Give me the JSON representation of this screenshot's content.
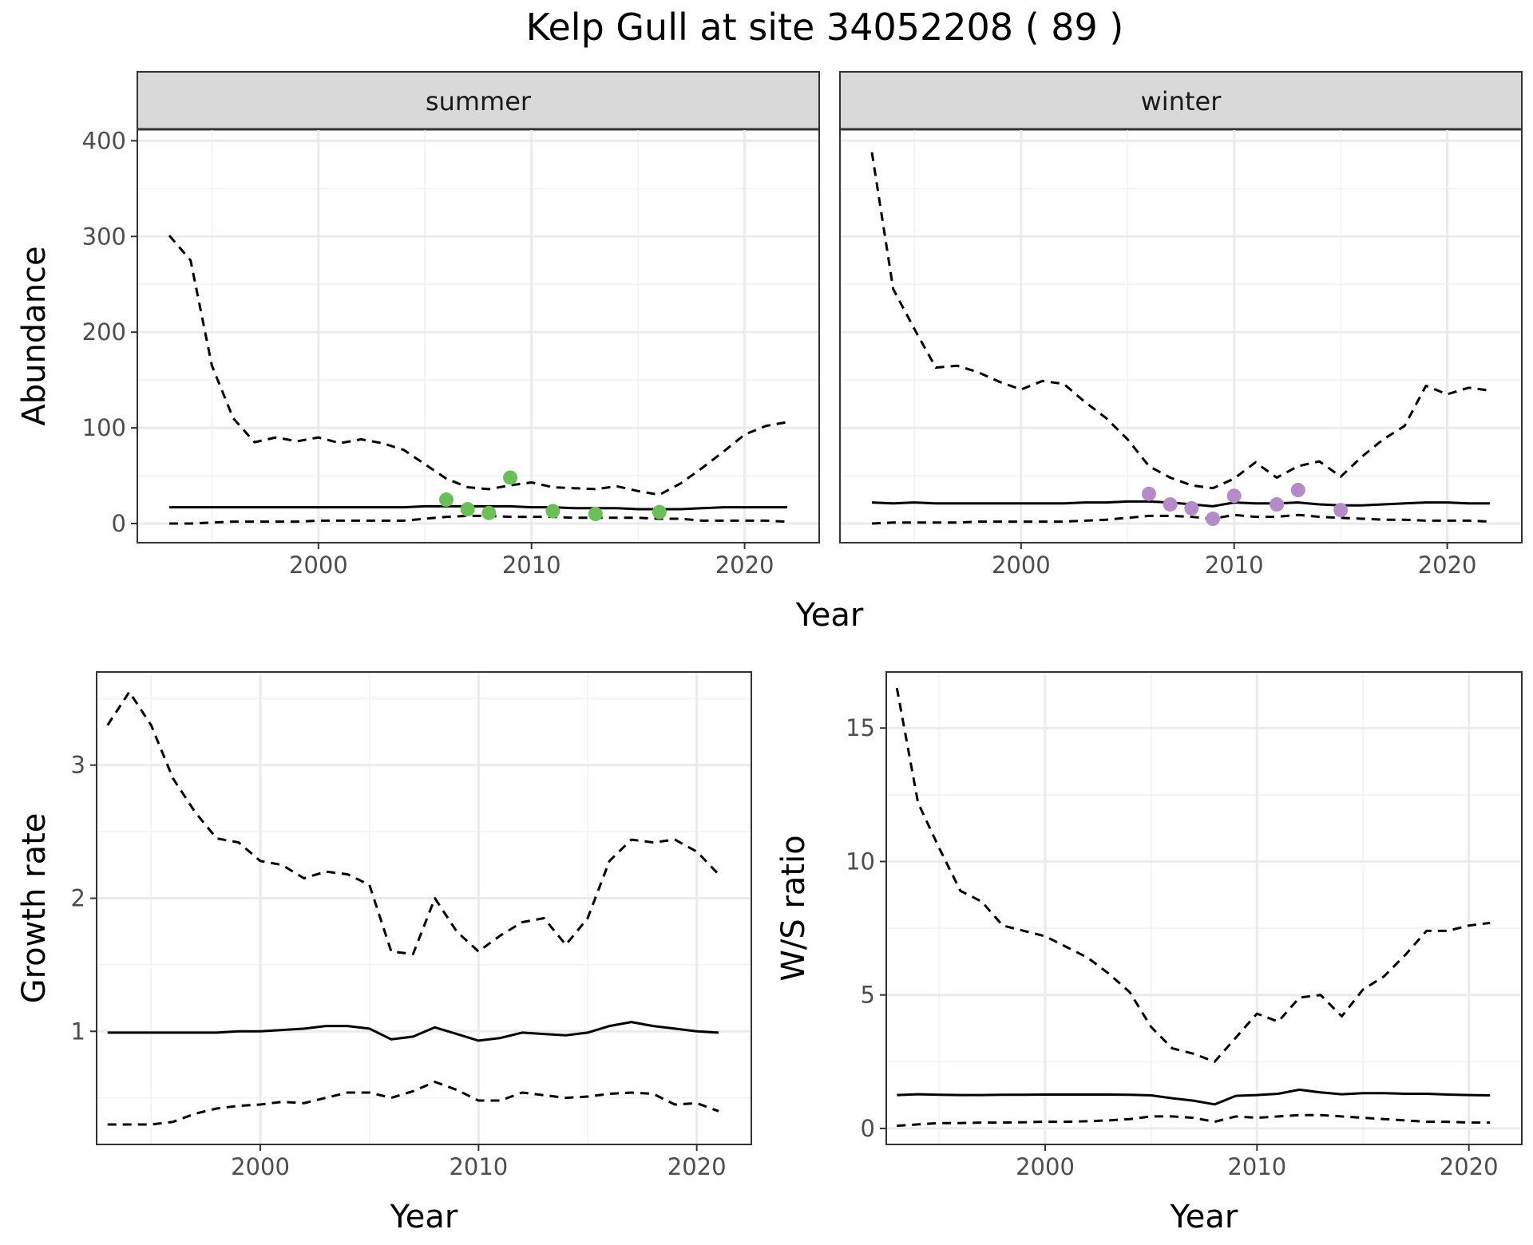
{
  "title": "Kelp Gull at site 34052208 ( 89 )",
  "colors": {
    "summer_points": "#6bbf59",
    "winter_points": "#b48bc8",
    "line": "#000000",
    "strip_bg": "#d9d9d9",
    "grid": "#ebebeb"
  },
  "chart_data": [
    {
      "id": "abundance",
      "type": "line",
      "xlabel": "Year",
      "ylabel": "Abundance",
      "xlim": [
        1991.5,
        2023.5
      ],
      "ylim": [
        -20,
        412
      ],
      "xticks": [
        2000,
        2010,
        2020
      ],
      "yticks": [
        0,
        100,
        200,
        300,
        400
      ],
      "facets": [
        {
          "label": "summer",
          "x": [
            1993,
            1994,
            1995,
            1996,
            1997,
            1998,
            1999,
            2000,
            2001,
            2002,
            2003,
            2004,
            2005,
            2006,
            2007,
            2008,
            2009,
            2010,
            2011,
            2012,
            2013,
            2014,
            2015,
            2016,
            2017,
            2018,
            2019,
            2020,
            2021,
            2022
          ],
          "median": [
            17,
            17,
            17,
            17,
            17,
            17,
            17,
            17,
            17,
            17,
            17,
            17,
            18,
            18,
            18,
            18,
            18,
            17,
            17,
            16,
            16,
            16,
            15,
            15,
            15,
            16,
            17,
            17,
            17,
            17
          ],
          "upper": [
            301,
            275,
            165,
            110,
            85,
            90,
            86,
            90,
            84,
            88,
            84,
            77,
            62,
            47,
            38,
            36,
            40,
            43,
            38,
            37,
            36,
            39,
            34,
            30,
            42,
            58,
            75,
            93,
            102,
            106
          ],
          "lower": [
            0,
            0,
            1,
            2,
            2,
            2,
            2,
            3,
            3,
            3,
            3,
            3,
            5,
            7,
            8,
            8,
            7,
            7,
            7,
            6,
            6,
            6,
            6,
            5,
            5,
            3,
            3,
            3,
            3,
            2
          ],
          "points": {
            "x": [
              2006,
              2007,
              2008,
              2009,
              2011,
              2013,
              2016
            ],
            "y": [
              25,
              15,
              11,
              48,
              13,
              10,
              12
            ]
          }
        },
        {
          "label": "winter",
          "x": [
            1993,
            1994,
            1995,
            1996,
            1997,
            1998,
            1999,
            2000,
            2001,
            2002,
            2003,
            2004,
            2005,
            2006,
            2007,
            2008,
            2009,
            2010,
            2011,
            2012,
            2013,
            2014,
            2015,
            2016,
            2017,
            2018,
            2019,
            2020,
            2021,
            2022
          ],
          "median": [
            22,
            21,
            22,
            21,
            21,
            21,
            21,
            21,
            21,
            21,
            22,
            22,
            23,
            23,
            22,
            20,
            18,
            22,
            21,
            21,
            22,
            20,
            19,
            19,
            20,
            21,
            22,
            22,
            21,
            21
          ],
          "upper": [
            388,
            245,
            203,
            163,
            165,
            158,
            148,
            140,
            149,
            146,
            127,
            110,
            88,
            60,
            48,
            40,
            37,
            47,
            64,
            48,
            60,
            65,
            49,
            70,
            88,
            102,
            144,
            135,
            142,
            139
          ],
          "lower": [
            0,
            1,
            1,
            1,
            1,
            2,
            2,
            2,
            2,
            2,
            3,
            4,
            6,
            8,
            8,
            7,
            5,
            9,
            7,
            7,
            9,
            7,
            6,
            5,
            4,
            4,
            3,
            3,
            3,
            2
          ],
          "points": {
            "x": [
              2006,
              2007,
              2008,
              2009,
              2010,
              2012,
              2013,
              2015
            ],
            "y": [
              31,
              20,
              16,
              5,
              29,
              20,
              35,
              14
            ]
          }
        }
      ]
    },
    {
      "id": "growth",
      "type": "line",
      "xlabel": "Year",
      "ylabel": "Growth rate",
      "xlim": [
        1992.5,
        2022.5
      ],
      "ylim": [
        0.15,
        3.7
      ],
      "xticks": [
        2000,
        2010,
        2020
      ],
      "yticks": [
        1,
        2,
        3
      ],
      "x": [
        1993,
        1994,
        1995,
        1996,
        1997,
        1998,
        1999,
        2000,
        2001,
        2002,
        2003,
        2004,
        2005,
        2006,
        2007,
        2008,
        2009,
        2010,
        2011,
        2012,
        2013,
        2014,
        2015,
        2016,
        2017,
        2018,
        2019,
        2020,
        2021
      ],
      "median": [
        0.99,
        0.99,
        0.99,
        0.99,
        0.99,
        0.99,
        1.0,
        1.0,
        1.01,
        1.02,
        1.04,
        1.04,
        1.02,
        0.94,
        0.96,
        1.03,
        0.98,
        0.93,
        0.95,
        0.99,
        0.98,
        0.97,
        0.99,
        1.04,
        1.07,
        1.04,
        1.02,
        1.0,
        0.99
      ],
      "upper": [
        3.3,
        3.55,
        3.3,
        2.9,
        2.65,
        2.45,
        2.42,
        2.28,
        2.25,
        2.15,
        2.2,
        2.18,
        2.1,
        1.6,
        1.58,
        2.0,
        1.75,
        1.6,
        1.72,
        1.82,
        1.85,
        1.65,
        1.85,
        2.28,
        2.44,
        2.42,
        2.44,
        2.35,
        2.18
      ],
      "lower": [
        0.3,
        0.3,
        0.3,
        0.32,
        0.38,
        0.42,
        0.44,
        0.45,
        0.47,
        0.46,
        0.5,
        0.54,
        0.54,
        0.5,
        0.55,
        0.62,
        0.56,
        0.48,
        0.48,
        0.54,
        0.52,
        0.5,
        0.51,
        0.53,
        0.54,
        0.53,
        0.45,
        0.46,
        0.4
      ]
    },
    {
      "id": "ratio",
      "type": "line",
      "xlabel": "Year",
      "ylabel": "W/S ratio",
      "xlim": [
        1992.5,
        2022.5
      ],
      "ylim": [
        -0.6,
        17.1
      ],
      "xticks": [
        2000,
        2010,
        2020
      ],
      "yticks": [
        0,
        5,
        10,
        15
      ],
      "x": [
        1993,
        1994,
        1995,
        1996,
        1997,
        1998,
        1999,
        2000,
        2001,
        2002,
        2003,
        2004,
        2005,
        2006,
        2007,
        2008,
        2009,
        2010,
        2011,
        2012,
        2013,
        2014,
        2015,
        2016,
        2017,
        2018,
        2019,
        2020,
        2021
      ],
      "median": [
        1.25,
        1.28,
        1.26,
        1.25,
        1.25,
        1.26,
        1.26,
        1.27,
        1.27,
        1.27,
        1.27,
        1.26,
        1.24,
        1.13,
        1.04,
        0.9,
        1.22,
        1.25,
        1.3,
        1.45,
        1.35,
        1.28,
        1.32,
        1.32,
        1.3,
        1.3,
        1.27,
        1.25,
        1.24
      ],
      "upper": [
        16.5,
        12.2,
        10.5,
        8.9,
        8.5,
        7.6,
        7.4,
        7.2,
        6.8,
        6.4,
        5.8,
        5.1,
        3.8,
        3.0,
        2.8,
        2.5,
        3.4,
        4.3,
        4.0,
        4.9,
        5.0,
        4.2,
        5.2,
        5.7,
        6.5,
        7.4,
        7.4,
        7.6,
        7.7
      ],
      "lower": [
        0.1,
        0.15,
        0.2,
        0.2,
        0.22,
        0.22,
        0.23,
        0.25,
        0.25,
        0.27,
        0.3,
        0.35,
        0.45,
        0.45,
        0.4,
        0.25,
        0.45,
        0.4,
        0.45,
        0.5,
        0.5,
        0.45,
        0.4,
        0.35,
        0.3,
        0.25,
        0.25,
        0.22,
        0.22
      ]
    }
  ]
}
